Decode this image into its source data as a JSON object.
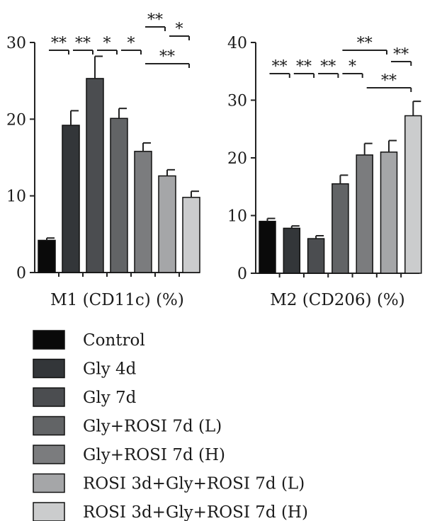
{
  "legend": [
    {
      "label": "Control",
      "color": "#0a0a0a"
    },
    {
      "label": "Gly 4d",
      "color": "#333639"
    },
    {
      "label": "Gly 7d",
      "color": "#4b4d50"
    },
    {
      "label": "Gly+ROSI 7d (L)",
      "color": "#626466"
    },
    {
      "label": "Gly+ROSI 7d (H)",
      "color": "#7b7c7e"
    },
    {
      "label": "ROSI 3d+Gly+ROSI 7d (L)",
      "color": "#a5a6a8"
    },
    {
      "label": "ROSI 3d+Gly+ROSI 7d (H)",
      "color": "#cbcccd"
    }
  ],
  "chart_data": [
    {
      "type": "bar",
      "xlabel": "M1 (CD11c) (%)",
      "ylabel": "",
      "ylim": [
        0,
        30
      ],
      "yticks": [
        0,
        10,
        20,
        30
      ],
      "categories": [
        "Control",
        "Gly 4d",
        "Gly 7d",
        "Gly+ROSI 7d (L)",
        "Gly+ROSI 7d (H)",
        "ROSI 3d+Gly+ROSI 7d (L)",
        "ROSI 3d+Gly+ROSI 7d (H)"
      ],
      "values": [
        4.2,
        19.2,
        25.3,
        20.1,
        15.8,
        12.6,
        9.8
      ],
      "errors": [
        0.3,
        1.9,
        2.9,
        1.3,
        1.1,
        0.8,
        0.8
      ],
      "significance": [
        {
          "from": 0,
          "to": 1,
          "label": "**"
        },
        {
          "from": 1,
          "to": 2,
          "label": "**"
        },
        {
          "from": 2,
          "to": 3,
          "label": "*"
        },
        {
          "from": 3,
          "to": 4,
          "label": "*"
        },
        {
          "from": 4,
          "to": 5,
          "label": "**"
        },
        {
          "from": 4,
          "to": 6,
          "label": "**"
        },
        {
          "from": 5,
          "to": 6,
          "label": "*"
        }
      ]
    },
    {
      "type": "bar",
      "xlabel": "M2 (CD206) (%)",
      "ylabel": "",
      "ylim": [
        0,
        40
      ],
      "yticks": [
        0,
        10,
        20,
        30,
        40
      ],
      "categories": [
        "Control",
        "Gly 4d",
        "Gly 7d",
        "Gly+ROSI 7d (L)",
        "Gly+ROSI 7d (H)",
        "ROSI 3d+Gly+ROSI 7d (L)",
        "ROSI 3d+Gly+ROSI 7d (H)"
      ],
      "values": [
        9.0,
        7.8,
        6.0,
        15.5,
        20.5,
        21.0,
        27.3
      ],
      "errors": [
        0.5,
        0.4,
        0.5,
        1.5,
        2.0,
        2.0,
        2.5
      ],
      "significance": [
        {
          "from": 0,
          "to": 1,
          "label": "**"
        },
        {
          "from": 1,
          "to": 2,
          "label": "**"
        },
        {
          "from": 2,
          "to": 3,
          "label": "**"
        },
        {
          "from": 3,
          "to": 4,
          "label": "*"
        },
        {
          "from": 3,
          "to": 5,
          "label": "**"
        },
        {
          "from": 4,
          "to": 6,
          "label": "**"
        },
        {
          "from": 5,
          "to": 6,
          "label": "**"
        }
      ]
    }
  ]
}
